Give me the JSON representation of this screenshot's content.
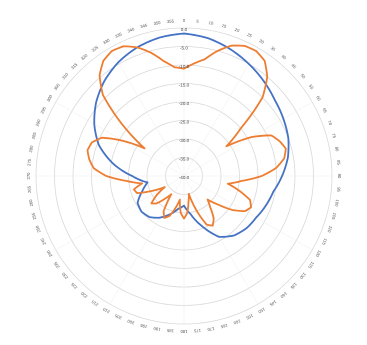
{
  "chart_data": {
    "type": "polar-line",
    "title": "",
    "angle_unit": "degrees",
    "angle_step": 5,
    "zero_direction": "top",
    "clockwise": true,
    "radial_min": -40,
    "radial_max": 0,
    "radial_tick_labels": [
      "0.0",
      "-5.0",
      "-10.0",
      "-15.0",
      "-20.0",
      "-25.0",
      "-30.0",
      "-35.0",
      "-40.0"
    ],
    "legend": "none",
    "series": [
      {
        "color": "#4472C4",
        "points": [
          [
            0,
            -1.5
          ],
          [
            10,
            -2.2
          ],
          [
            20,
            -3.5
          ],
          [
            30,
            -5.0
          ],
          [
            40,
            -6.5
          ],
          [
            50,
            -8.0
          ],
          [
            60,
            -9.0
          ],
          [
            70,
            -10.0
          ],
          [
            80,
            -11.5
          ],
          [
            90,
            -13.5
          ],
          [
            100,
            -15.5
          ],
          [
            110,
            -16.5
          ],
          [
            120,
            -17.5
          ],
          [
            130,
            -18.0
          ],
          [
            140,
            -19.0
          ],
          [
            150,
            -21.0
          ],
          [
            160,
            -25.5
          ],
          [
            170,
            -29.5
          ],
          [
            180,
            -32.0
          ],
          [
            190,
            -31.0
          ],
          [
            200,
            -29.0
          ],
          [
            210,
            -27.0
          ],
          [
            220,
            -25.5
          ],
          [
            230,
            -25.0
          ],
          [
            240,
            -25.5
          ],
          [
            250,
            -28.0
          ],
          [
            260,
            -30.0
          ],
          [
            270,
            -26.0
          ],
          [
            280,
            -20.5
          ],
          [
            290,
            -15.5
          ],
          [
            300,
            -12.0
          ],
          [
            310,
            -9.0
          ],
          [
            320,
            -6.5
          ],
          [
            330,
            -4.5
          ],
          [
            340,
            -3.0
          ],
          [
            350,
            -2.0
          ]
        ]
      },
      {
        "color": "#ED7D31",
        "points": [
          [
            0,
            -11.0
          ],
          [
            10,
            -8.0
          ],
          [
            15,
            -5.0
          ],
          [
            20,
            -2.5
          ],
          [
            25,
            -1.2
          ],
          [
            30,
            -1.0
          ],
          [
            35,
            -2.0
          ],
          [
            40,
            -5.0
          ],
          [
            45,
            -10.0
          ],
          [
            50,
            -20.0
          ],
          [
            55,
            -26.0
          ],
          [
            60,
            -19.0
          ],
          [
            65,
            -14.0
          ],
          [
            70,
            -12.5
          ],
          [
            75,
            -11.5
          ],
          [
            80,
            -12.5
          ],
          [
            85,
            -15.0
          ],
          [
            90,
            -19.0
          ],
          [
            95,
            -24.5
          ],
          [
            100,
            -28.0
          ],
          [
            105,
            -24.5
          ],
          [
            110,
            -21.0
          ],
          [
            115,
            -20.0
          ],
          [
            120,
            -21.0
          ],
          [
            125,
            -24.0
          ],
          [
            130,
            -28.0
          ],
          [
            135,
            -31.0
          ],
          [
            140,
            -29.0
          ],
          [
            145,
            -26.0
          ],
          [
            150,
            -24.5
          ],
          [
            155,
            -25.5
          ],
          [
            160,
            -30.0
          ],
          [
            165,
            -35.0
          ],
          [
            170,
            -33.0
          ],
          [
            175,
            -30.0
          ],
          [
            180,
            -28.5
          ],
          [
            185,
            -30.0
          ],
          [
            190,
            -33.5
          ],
          [
            195,
            -31.0
          ],
          [
            200,
            -28.5
          ],
          [
            205,
            -27.5
          ],
          [
            210,
            -29.0
          ],
          [
            215,
            -34.0
          ],
          [
            220,
            -32.0
          ],
          [
            225,
            -29.5
          ],
          [
            230,
            -28.5
          ],
          [
            235,
            -31.0
          ],
          [
            240,
            -34.0
          ],
          [
            245,
            -30.5
          ],
          [
            250,
            -26.5
          ],
          [
            255,
            -26.0
          ],
          [
            260,
            -28.5
          ],
          [
            265,
            -24.5
          ],
          [
            270,
            -19.0
          ],
          [
            275,
            -15.5
          ],
          [
            280,
            -14.0
          ],
          [
            285,
            -13.0
          ],
          [
            290,
            -13.5
          ],
          [
            295,
            -15.5
          ],
          [
            300,
            -21.0
          ],
          [
            305,
            -27.0
          ],
          [
            310,
            -18.0
          ],
          [
            315,
            -9.0
          ],
          [
            320,
            -4.5
          ],
          [
            325,
            -2.0
          ],
          [
            330,
            -1.0
          ],
          [
            335,
            -1.3
          ],
          [
            340,
            -3.0
          ],
          [
            345,
            -5.5
          ],
          [
            350,
            -8.5
          ],
          [
            355,
            -10.5
          ],
          [
            360,
            -11.0
          ]
        ]
      }
    ]
  }
}
